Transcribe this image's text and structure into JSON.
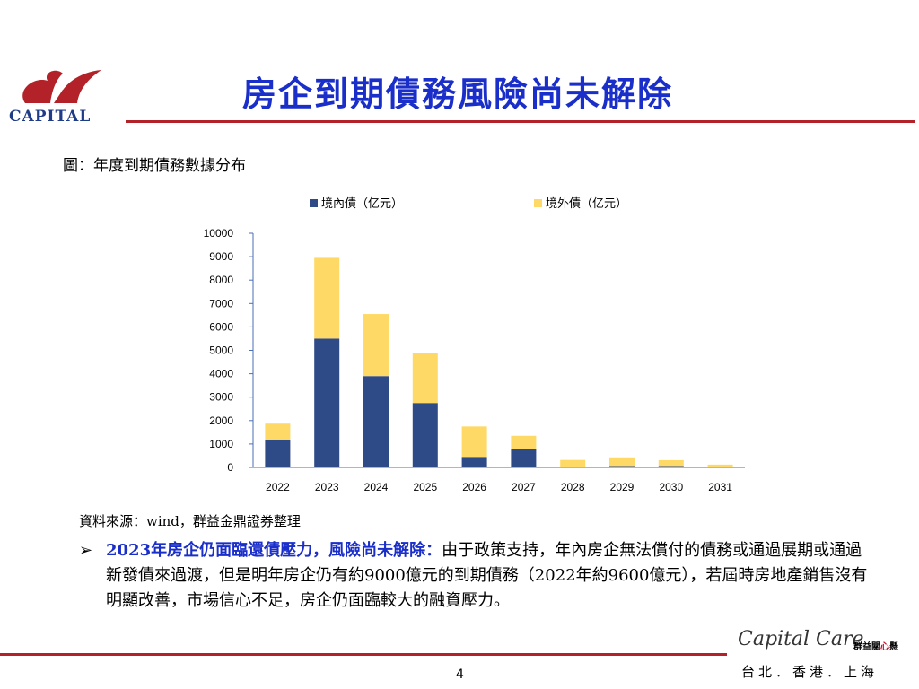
{
  "header": {
    "logo_text": "CAPITAL",
    "title": "房企到期債務風險尚未解除"
  },
  "figure": {
    "caption": "圖：年度到期債務數據分布",
    "source": "資料來源：wind，群益金鼎證券整理"
  },
  "chart_data": {
    "type": "bar",
    "stacked": true,
    "categories": [
      "2022",
      "2023",
      "2024",
      "2025",
      "2026",
      "2027",
      "2028",
      "2029",
      "2030",
      "2031"
    ],
    "series": [
      {
        "name": "境內債（亿元）",
        "color": "#2e4a87",
        "values": [
          1150,
          5500,
          3900,
          2750,
          450,
          800,
          0,
          60,
          60,
          0
        ]
      },
      {
        "name": "境外債（亿元）",
        "color": "#ffd966",
        "values": [
          720,
          3450,
          2650,
          2150,
          1300,
          550,
          320,
          370,
          250,
          120
        ]
      }
    ],
    "y_ticks": [
      "0",
      "1000",
      "2000",
      "3000",
      "4000",
      "5000",
      "6000",
      "7000",
      "8000",
      "9000",
      "10000"
    ],
    "ylim": [
      0,
      10000
    ],
    "legend_position": "top"
  },
  "bullet": {
    "marker": "➢",
    "lead": "2023年房企仍面臨還債壓力，風險尚未解除：",
    "body": "由于政策支持，年內房企無法償付的債務或通過展期或通過新發債來過渡，但是明年房企仍有約9000億元的到期債務（2022年約9600億元），若屆時房地產銷售沒有明顯改善，市場信心不足，房企仍面臨較大的融資壓力。"
  },
  "footer": {
    "page_number": "4",
    "brand_name": "Capital Care",
    "brand_sub_a": "群益關",
    "brand_sub_heart": "心",
    "brand_sub_b": "懸",
    "cities": "台北．香港．上海"
  },
  "colors": {
    "title_blue": "#1a2ec9",
    "rule_red": "#b22228",
    "domestic_bar": "#2e4a87",
    "offshore_bar": "#ffd966"
  }
}
